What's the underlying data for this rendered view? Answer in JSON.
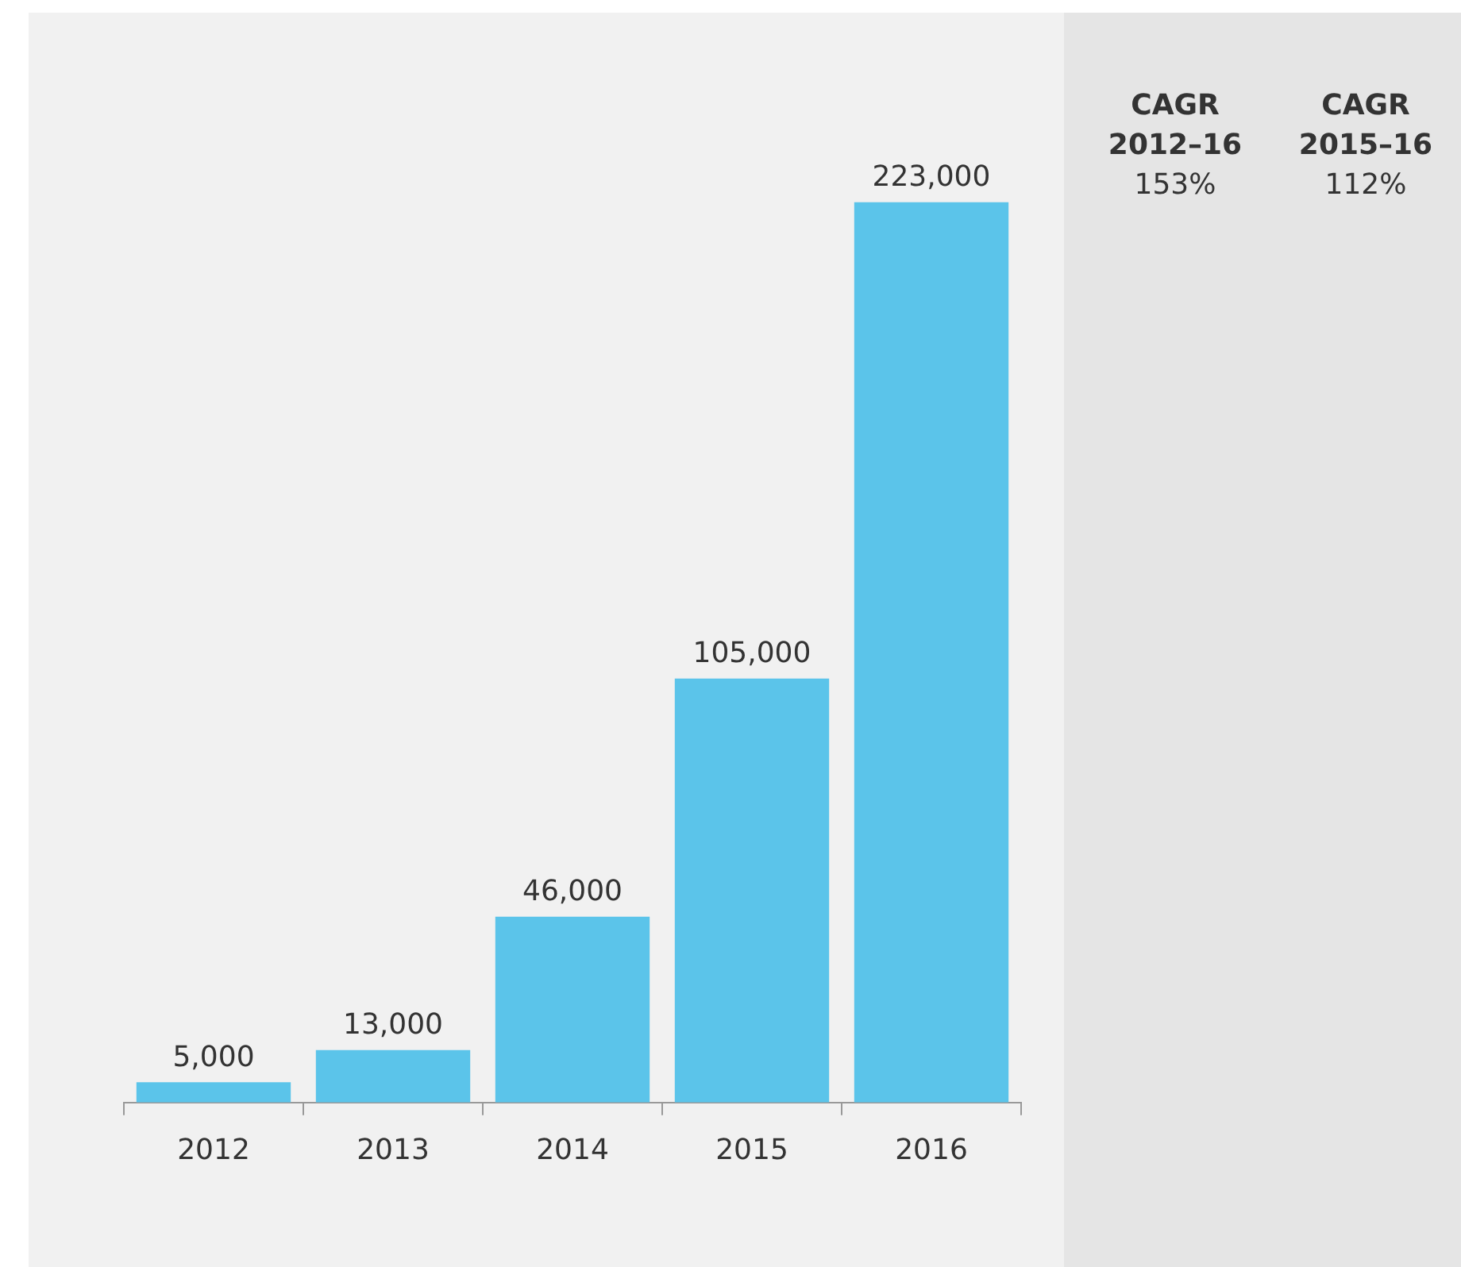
{
  "chart_data": {
    "type": "bar",
    "categories": [
      "2012",
      "2013",
      "2014",
      "2015",
      "2016"
    ],
    "values": [
      5000,
      13000,
      46000,
      105000,
      223000
    ],
    "color": "#5bc4ea",
    "value_labels": [
      "5,000",
      "13,000",
      "46,000",
      "105,000",
      "223,000"
    ],
    "grid": false,
    "legend": false,
    "annotations": [
      "CAGR 2012–16",
      "153%",
      "CAGR 2015–16",
      "112%"
    ]
  }
}
